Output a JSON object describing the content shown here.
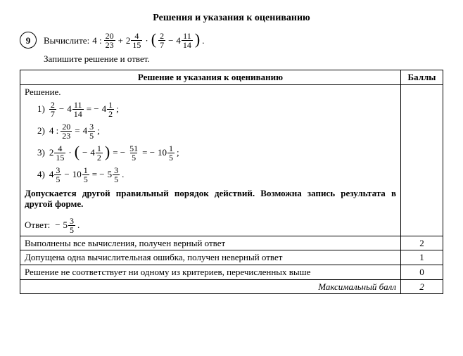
{
  "title": "Решения и указания к оцениванию",
  "problem": {
    "number": "9",
    "label": "Вычислите:",
    "expr_prefix": "4 :",
    "f1": {
      "num": "20",
      "den": "23"
    },
    "plus": "+",
    "m2": {
      "whole": "2",
      "num": "4",
      "den": "15"
    },
    "dot": "·",
    "lp": "(",
    "rp": ")",
    "f3": {
      "num": "2",
      "den": "7"
    },
    "minus": "−",
    "m4": {
      "whole": "4",
      "num": "11",
      "den": "14"
    },
    "period": "."
  },
  "instruction": "Запишите решение и ответ.",
  "table": {
    "header_left": "Решение и указания к оцениванию",
    "header_right": "Баллы",
    "solution_label": "Решение.",
    "steps": {
      "s1": {
        "idx": "1)",
        "a": {
          "num": "2",
          "den": "7"
        },
        "op1": "−",
        "b": {
          "whole": "4",
          "num": "11",
          "den": "14"
        },
        "eq": "= −",
        "c": {
          "whole": "4",
          "num": "1",
          "den": "2"
        },
        "end": ";"
      },
      "s2": {
        "idx": "2)",
        "pre": "4 :",
        "a": {
          "num": "20",
          "den": "23"
        },
        "eq": "=",
        "b": {
          "whole": "4",
          "num": "3",
          "den": "5"
        },
        "end": ";"
      },
      "s3": {
        "idx": "3)",
        "a": {
          "whole": "2",
          "num": "4",
          "den": "15"
        },
        "dot": "·",
        "lp": "(",
        "rp": ")",
        "neg": "−",
        "b": {
          "whole": "4",
          "num": "1",
          "den": "2"
        },
        "eq1": "= −",
        "c": {
          "num": "51",
          "den": "5"
        },
        "eq2": "= −",
        "d": {
          "whole": "10",
          "num": "1",
          "den": "5"
        },
        "end": ";"
      },
      "s4": {
        "idx": "4)",
        "a": {
          "whole": "4",
          "num": "3",
          "den": "5"
        },
        "op": "−",
        "b": {
          "whole": "10",
          "num": "1",
          "den": "5"
        },
        "eq": "= −",
        "c": {
          "whole": "5",
          "num": "3",
          "den": "5"
        },
        "end": "."
      }
    },
    "note": "Допускается другой правильный порядок действий. Возможна запись результата в другой форме.",
    "answer_label": "Ответ:",
    "answer_neg": "−",
    "answer_val": {
      "whole": "5",
      "num": "3",
      "den": "5"
    },
    "answer_end": ".",
    "rows": [
      {
        "text": "Выполнены все вычисления, получен верный ответ",
        "score": "2"
      },
      {
        "text": "Допущена одна вычислительная ошибка, получен неверный ответ",
        "score": "1"
      },
      {
        "text": "Решение не соответствует ни одному из критериев, перечисленных выше",
        "score": "0"
      }
    ],
    "max_label": "Максимальный балл",
    "max_score": "2"
  }
}
